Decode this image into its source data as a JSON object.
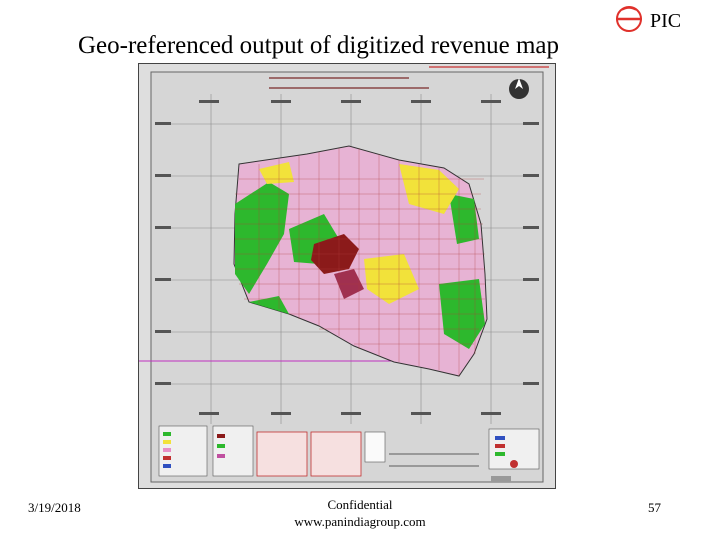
{
  "slide": {
    "title": "Geo-referenced output of digitized revenue map",
    "brand": "PIC",
    "date": "3/19/2018",
    "footer_line1": "Confidential",
    "footer_line2": "www.panindiagroup.com",
    "page_number": "57"
  },
  "colors": {
    "accent": "#e0312b",
    "map_green": "#2db82d",
    "map_yellow": "#f2e23a",
    "map_pink": "#e88fc7",
    "map_maroon": "#8b1a1a",
    "map_bg": "#dedede"
  },
  "icons": {
    "logo": "pic-logo-icon",
    "north_arrow": "north-arrow-icon"
  }
}
